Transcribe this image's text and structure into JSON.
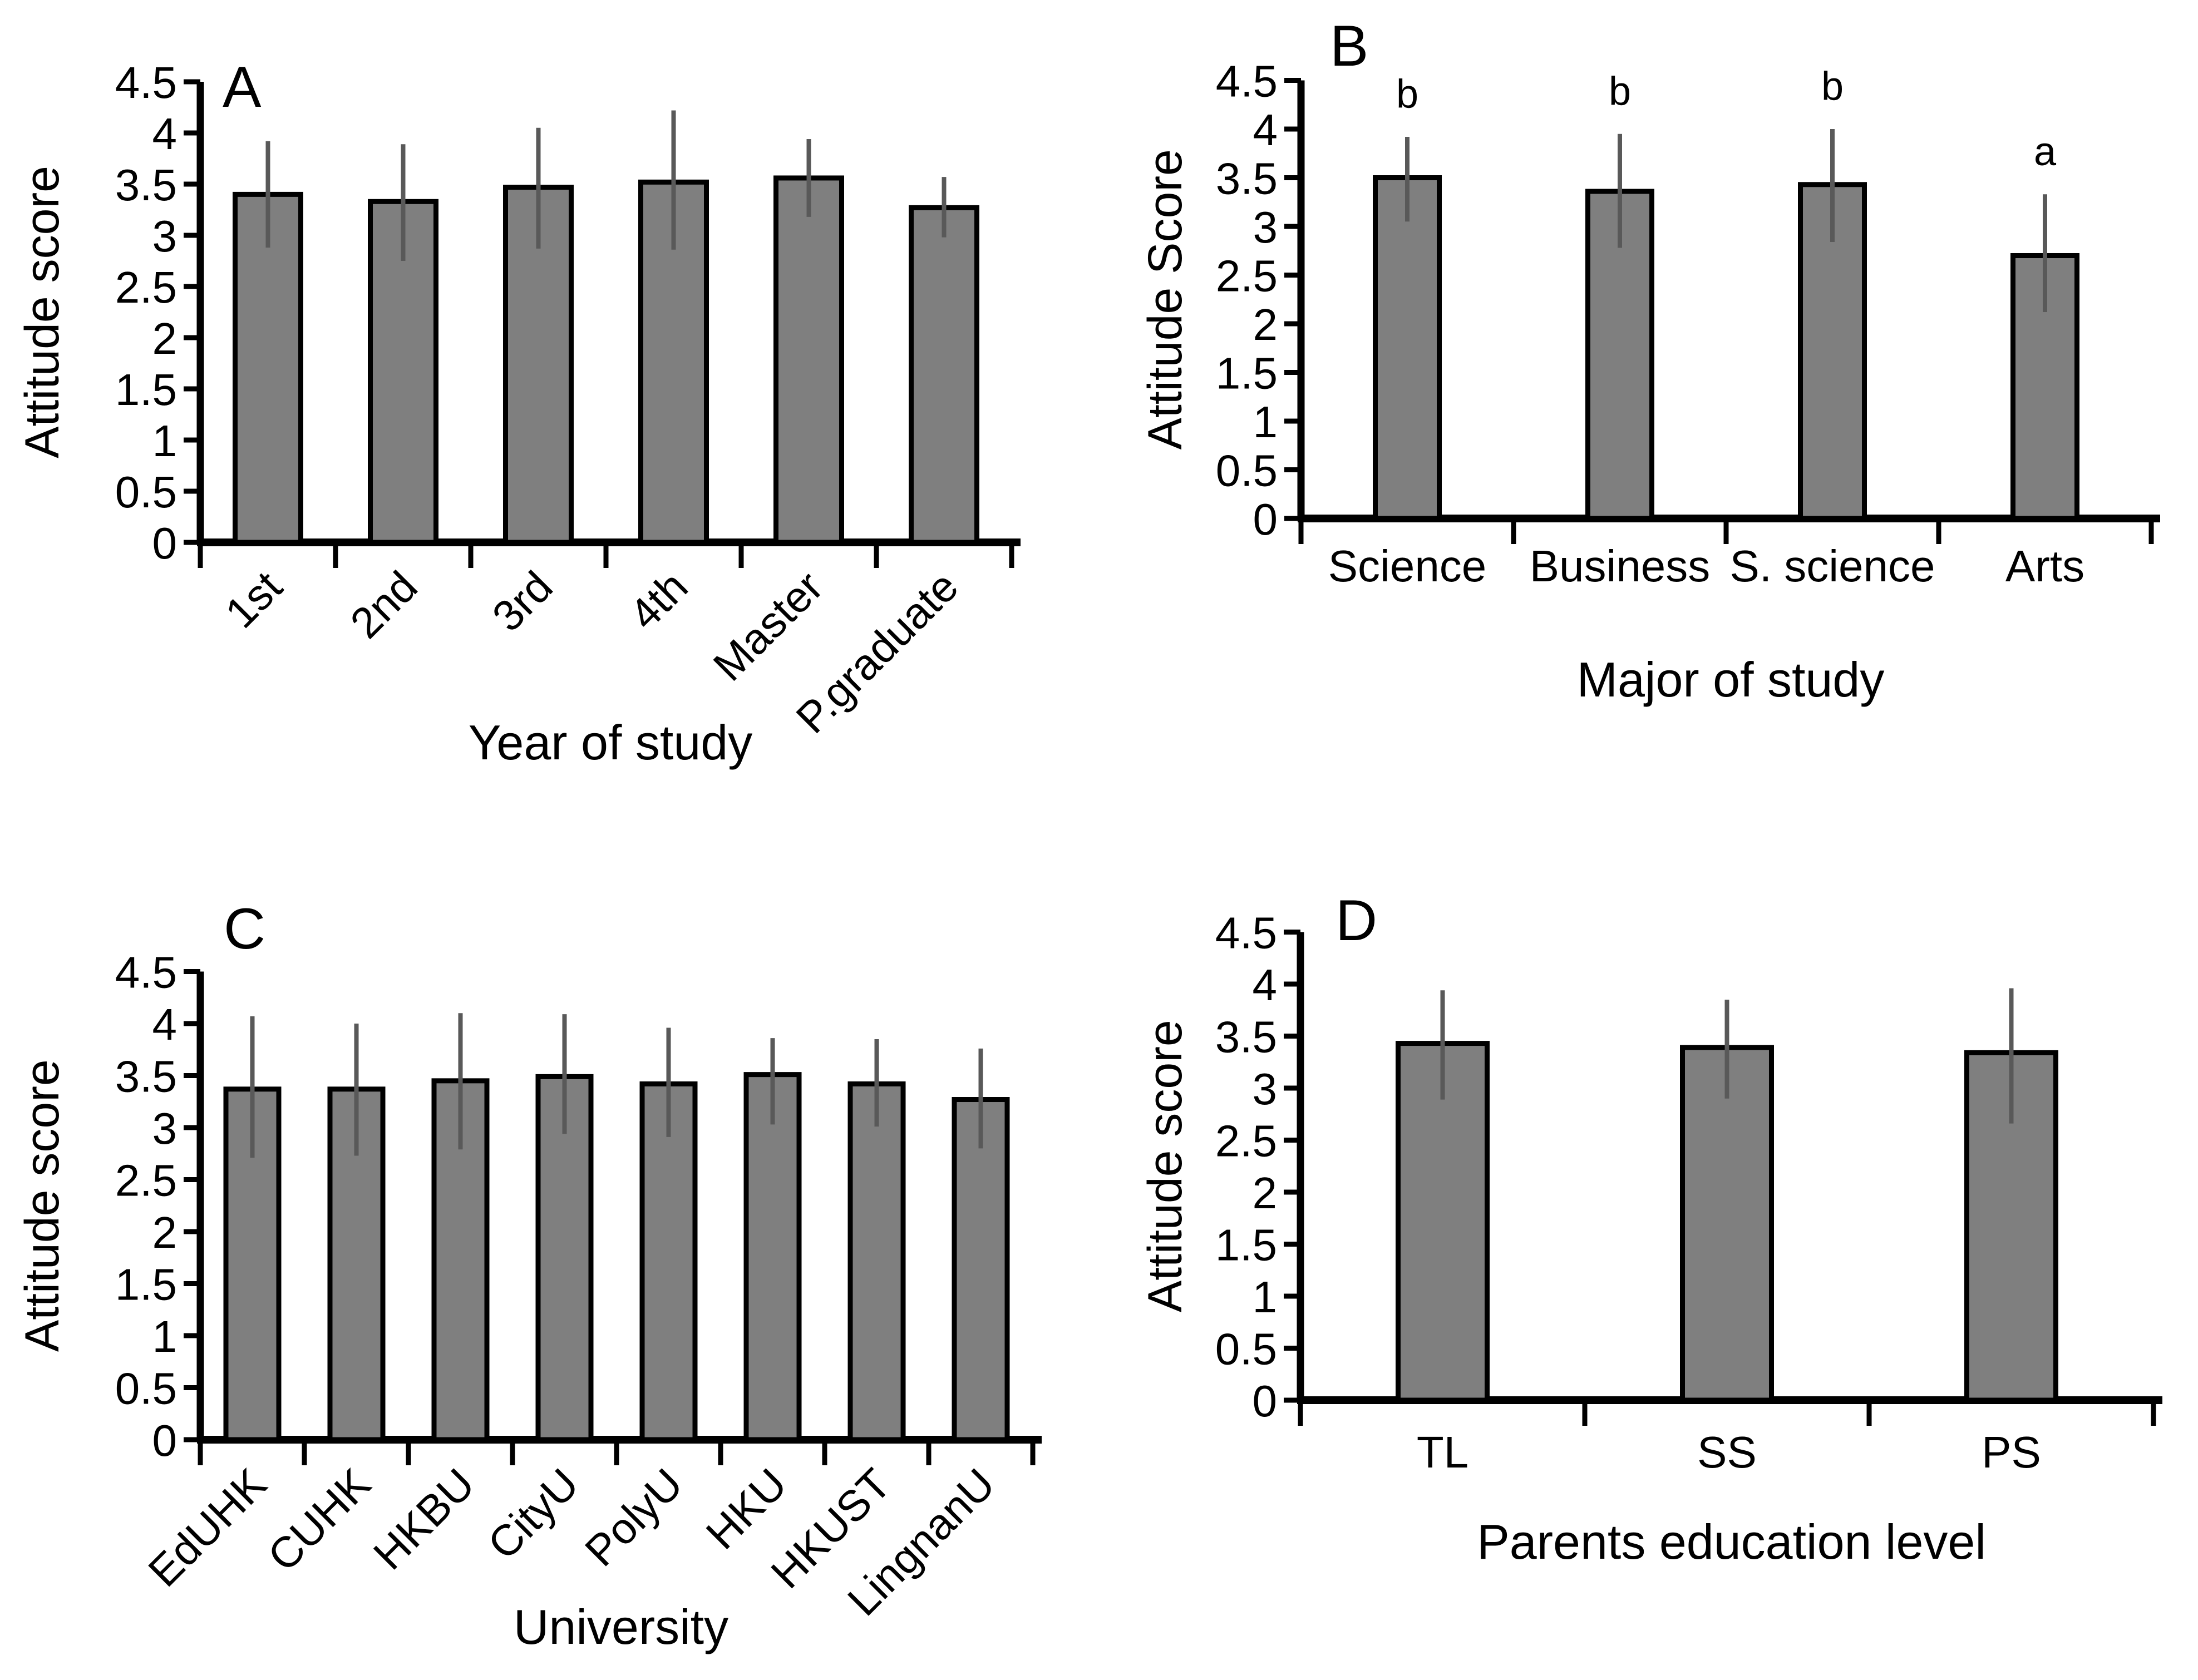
{
  "figure": {
    "background": "#ffffff",
    "colors": {
      "bar_fill": "#7f7f7f",
      "bar_border": "#000000",
      "error_bar": "#595959",
      "axis": "#000000",
      "text": "#000000"
    }
  },
  "chart_data": [
    {
      "type": "bar",
      "panel_letter": "A",
      "ylabel": "Attitude score",
      "xlabel": "Year of study",
      "ylim": [
        0,
        4.5
      ],
      "ytick_step": 0.5,
      "x_labels_rotated": true,
      "grid": false,
      "categories": [
        "1st",
        "2nd",
        "3rd",
        "4th",
        "Master",
        "P.graduate"
      ],
      "values": [
        3.4,
        3.33,
        3.47,
        3.52,
        3.56,
        3.27
      ],
      "err_low": [
        2.88,
        2.75,
        2.87,
        2.86,
        3.18,
        2.98
      ],
      "err_high": [
        3.92,
        3.89,
        4.05,
        4.22,
        3.94,
        3.57
      ],
      "sig_letters": null
    },
    {
      "type": "bar",
      "panel_letter": "B",
      "ylabel": "Attitude Score",
      "xlabel": "Major of study",
      "ylim": [
        0,
        4.5
      ],
      "ytick_step": 0.5,
      "x_labels_rotated": false,
      "grid": false,
      "categories": [
        "Science",
        "Business",
        "S. science",
        "Arts"
      ],
      "values": [
        3.5,
        3.36,
        3.43,
        2.7
      ],
      "err_low": [
        3.05,
        2.78,
        2.84,
        2.12
      ],
      "err_high": [
        3.92,
        3.95,
        4.0,
        3.33
      ],
      "sig_letters": [
        "b",
        "b",
        "b",
        "a"
      ]
    },
    {
      "type": "bar",
      "panel_letter": "C",
      "ylabel": "Attitude score",
      "xlabel": "University",
      "ylim": [
        0,
        4.5
      ],
      "ytick_step": 0.5,
      "x_labels_rotated": true,
      "grid": false,
      "categories": [
        "EdUHK",
        "CUHK",
        "HKBU",
        "CityU",
        "PolyU",
        "HKU",
        "HKUST",
        "LingnanU"
      ],
      "values": [
        3.37,
        3.37,
        3.45,
        3.49,
        3.42,
        3.51,
        3.42,
        3.27
      ],
      "err_low": [
        2.71,
        2.73,
        2.79,
        2.94,
        2.91,
        3.03,
        3.01,
        2.8
      ],
      "err_high": [
        4.07,
        4.0,
        4.1,
        4.09,
        3.96,
        3.86,
        3.85,
        3.76
      ],
      "sig_letters": null
    },
    {
      "type": "bar",
      "panel_letter": "D",
      "ylabel": "Attitude score",
      "xlabel": "Parents education level",
      "ylim": [
        0,
        4.5
      ],
      "ytick_step": 0.5,
      "x_labels_rotated": false,
      "grid": false,
      "categories": [
        "TL",
        "SS",
        "PS"
      ],
      "values": [
        3.43,
        3.39,
        3.34
      ],
      "err_low": [
        2.89,
        2.9,
        2.66
      ],
      "err_high": [
        3.94,
        3.85,
        3.96
      ],
      "sig_letters": null
    }
  ]
}
